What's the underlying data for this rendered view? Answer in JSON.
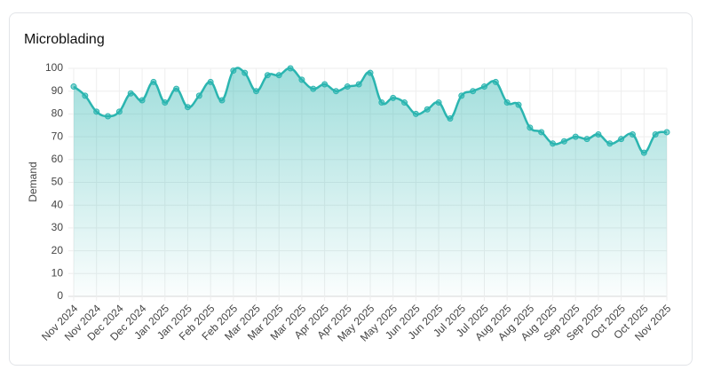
{
  "chart_data": {
    "type": "line",
    "title": "Microblading",
    "y_label": "Demand",
    "categories": [
      "Nov 2024",
      null,
      "Nov 2024",
      null,
      "Dec 2024",
      null,
      "Dec 2024",
      null,
      "Jan 2025",
      null,
      "Jan 2025",
      null,
      "Feb 2025",
      null,
      "Feb 2025",
      null,
      "Mar 2025",
      null,
      "Mar 2025",
      null,
      "Mar 2025",
      null,
      "Apr 2025",
      null,
      "Apr 2025",
      null,
      "May 2025",
      null,
      "May 2025",
      null,
      "Jun 2025",
      null,
      "Jun 2025",
      null,
      "Jul 2025",
      null,
      "Jul 2025",
      null,
      "Aug 2025",
      null,
      "Aug 2025",
      null,
      "Aug 2025",
      null,
      "Sep 2025",
      null,
      "Sep 2025",
      null,
      "Oct 2025",
      null,
      "Oct 2025",
      null,
      "Nov 2025"
    ],
    "series": [
      {
        "name": "Demand",
        "color": "#2bb5b0",
        "values": [
          92,
          88,
          81,
          79,
          81,
          89,
          86,
          94,
          85,
          91,
          83,
          88,
          94,
          86,
          99,
          98,
          90,
          97,
          97,
          100,
          95,
          91,
          93,
          90,
          92,
          93,
          98,
          85,
          87,
          85,
          80,
          82,
          85,
          78,
          88,
          90,
          92,
          94,
          85,
          84,
          74,
          72,
          67,
          68,
          70,
          69,
          71,
          67,
          69,
          71,
          63,
          71,
          72
        ]
      }
    ],
    "ylim": [
      0,
      100
    ],
    "yticks": [
      0,
      10,
      20,
      30,
      40,
      50,
      60,
      70,
      80,
      90,
      100
    ],
    "grid": true
  }
}
